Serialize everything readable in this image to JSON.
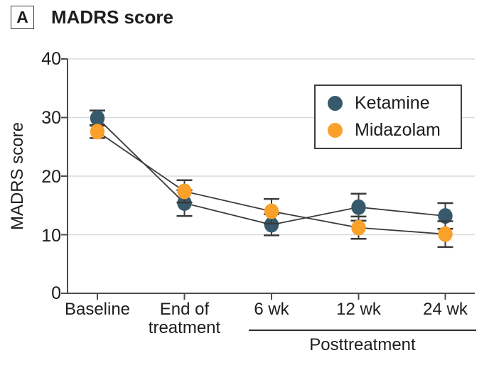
{
  "panel": {
    "label": "A",
    "title": "MADRS score"
  },
  "y_axis": {
    "title": "MADRS score",
    "tick_labels": [
      "40",
      "30",
      "20",
      "10",
      "0"
    ]
  },
  "x_axis": {
    "labels": [
      {
        "line1": "Baseline",
        "line2": ""
      },
      {
        "line1": "End of",
        "line2": "treatment"
      },
      {
        "line1": "6 wk",
        "line2": ""
      },
      {
        "line1": "12 wk",
        "line2": ""
      },
      {
        "line1": "24 wk",
        "line2": ""
      }
    ],
    "group_label": "Posttreatment"
  },
  "legend": {
    "items": [
      {
        "label": "Ketamine",
        "color": "#36596B"
      },
      {
        "label": "Midazolam",
        "color": "#F9A12B"
      }
    ]
  },
  "chart_data": {
    "type": "line",
    "title": "MADRS score",
    "categories": [
      "Baseline",
      "End of treatment",
      "6 wk",
      "12 wk",
      "24 wk"
    ],
    "series": [
      {
        "name": "Ketamine",
        "color": "#36596B",
        "values": [
          29.9,
          15.4,
          11.7,
          14.7,
          13.2
        ],
        "error": [
          1.3,
          2.2,
          1.8,
          2.3,
          2.2
        ]
      },
      {
        "name": "Midazolam",
        "color": "#F9A12B",
        "values": [
          27.6,
          17.4,
          14.0,
          11.2,
          10.1
        ],
        "error": [
          1.1,
          1.9,
          2.1,
          1.9,
          2.2
        ]
      }
    ],
    "xlabel": "",
    "ylabel": "MADRS score",
    "ylim": [
      0,
      40
    ],
    "yticks": [
      0,
      10,
      20,
      30,
      40
    ],
    "grid": true,
    "legend_position": "upper right",
    "annotation": {
      "label": "Posttreatment",
      "applies_to": [
        "6 wk",
        "12 wk",
        "24 wk"
      ]
    },
    "line_color": "#3A3A3A",
    "error_bar_color": "#3A3A3A",
    "gridline_color": "#D9D9D9",
    "axis_color": "#4D4D4D"
  }
}
